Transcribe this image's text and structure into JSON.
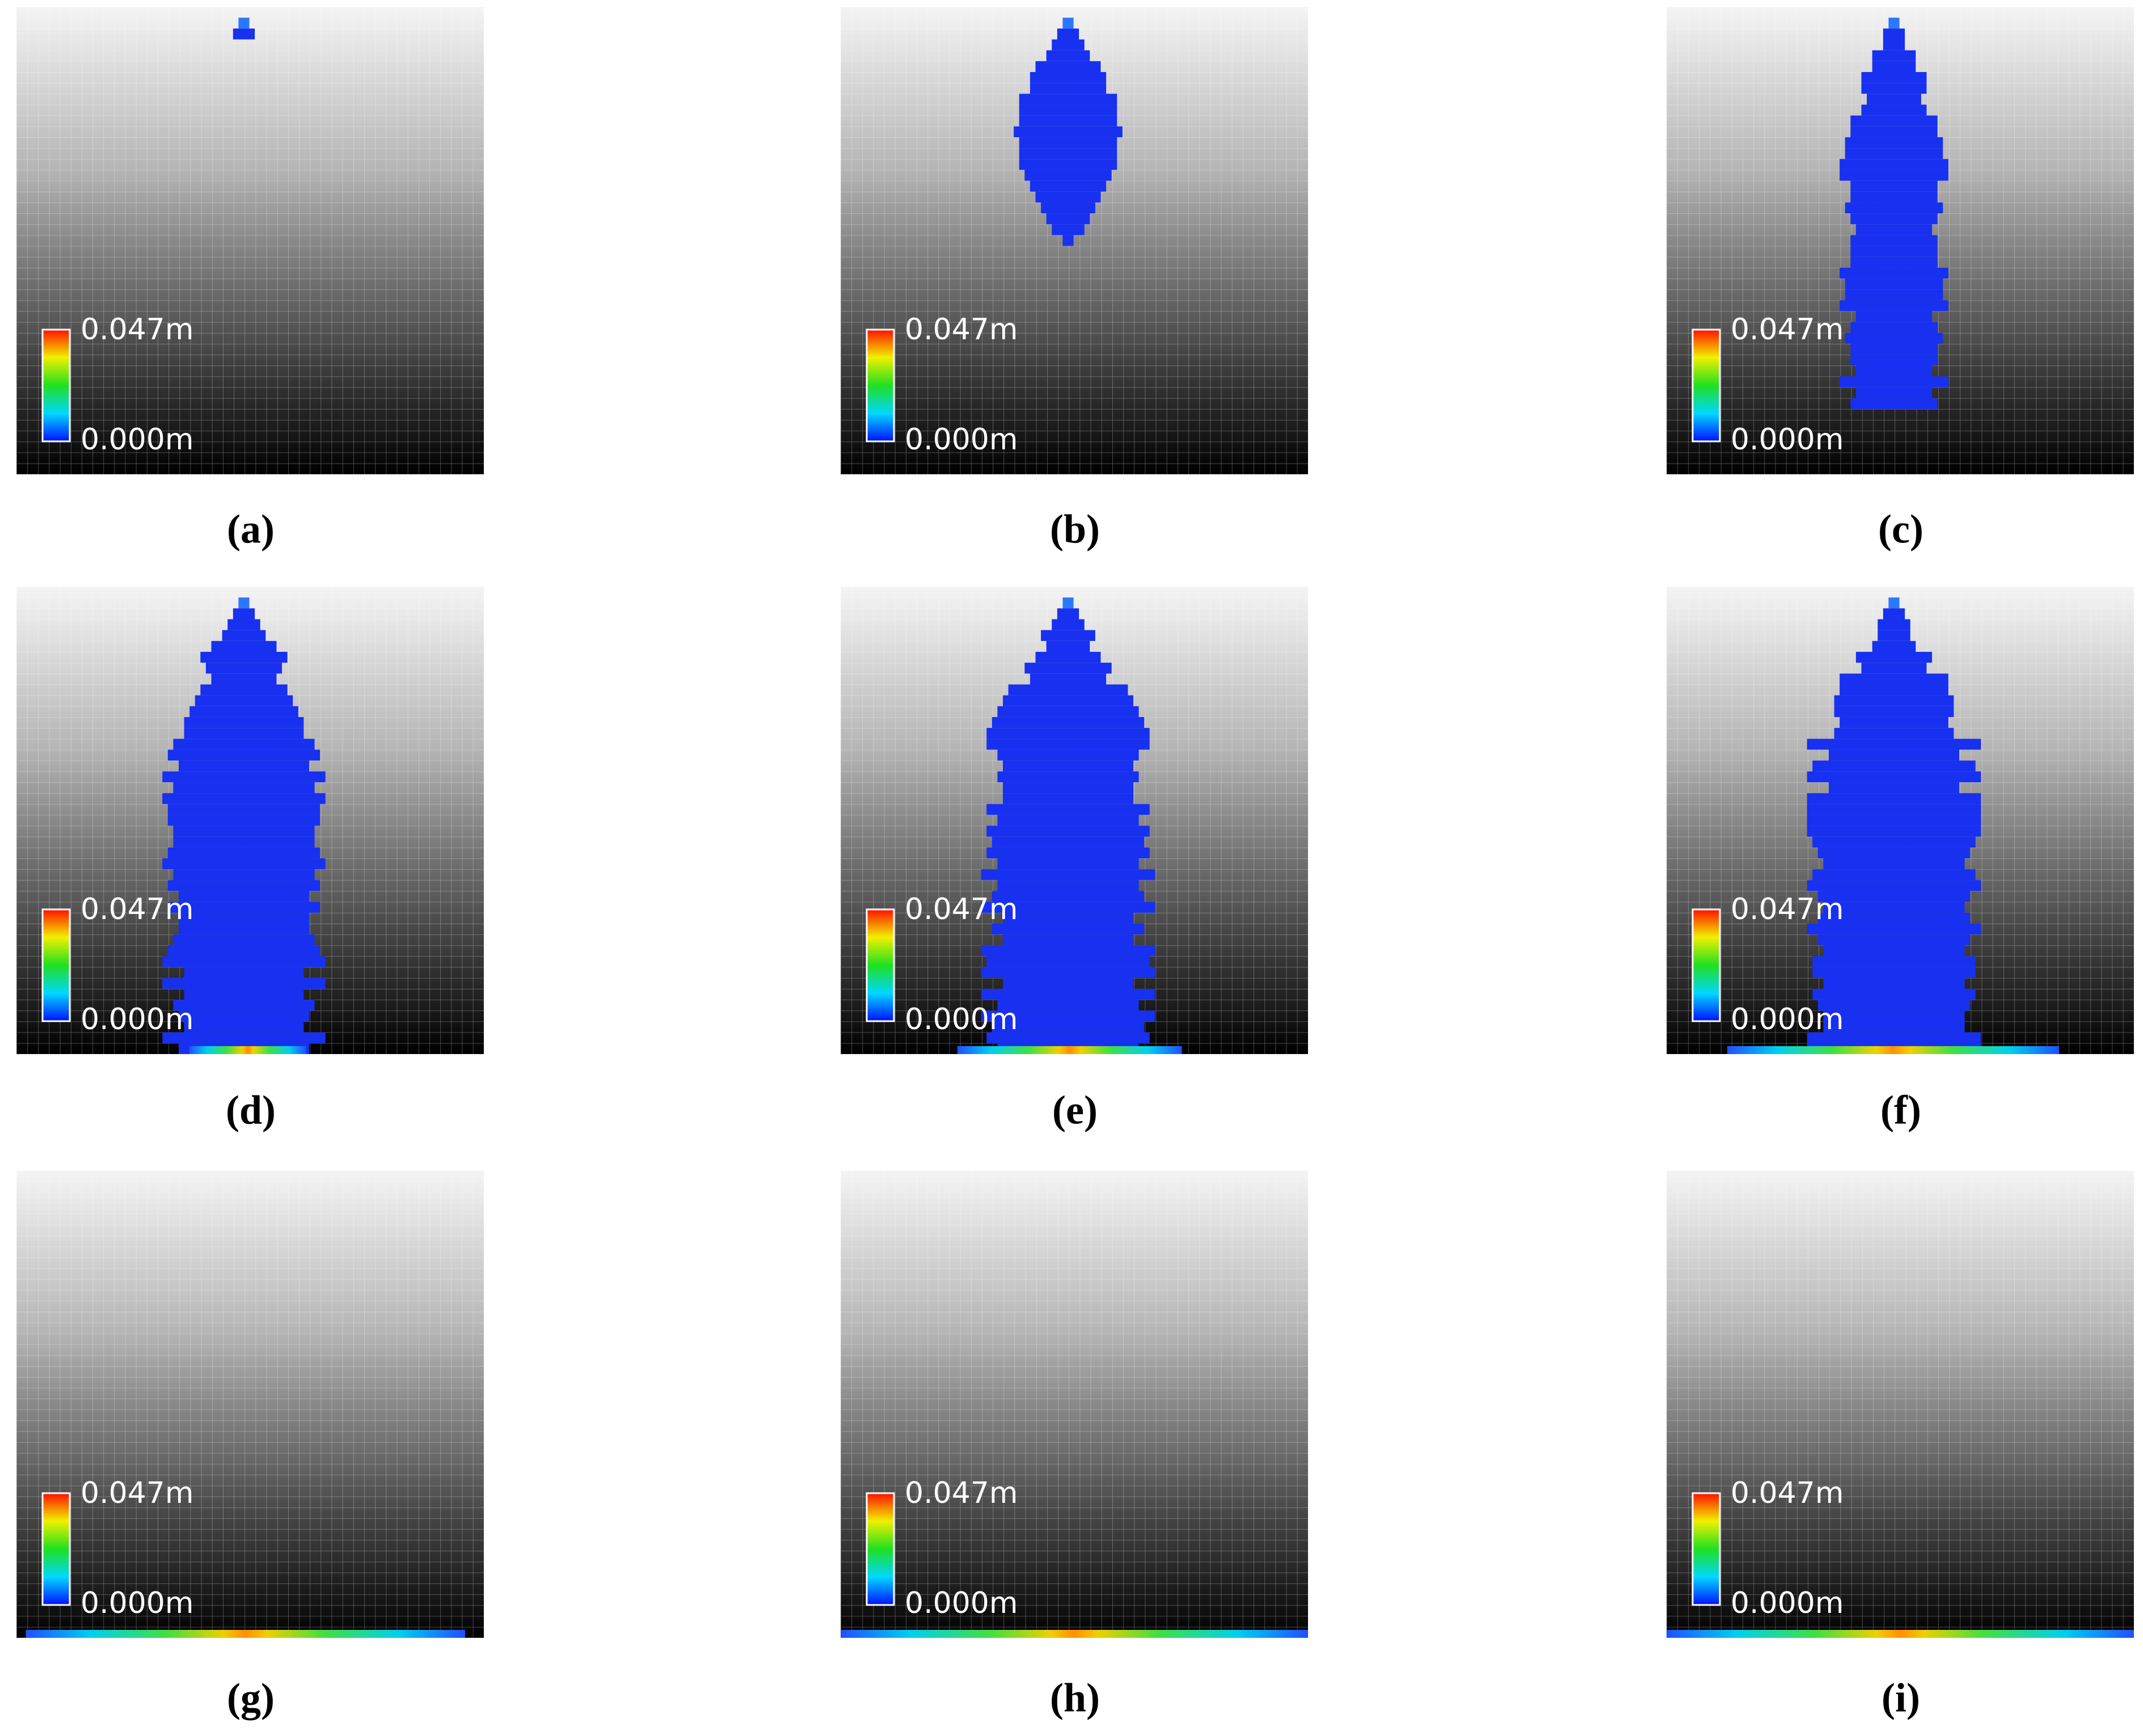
{
  "panels": [
    {
      "label": "(a)",
      "colorbar_max": "0.047m",
      "colorbar_min": "0.000m"
    },
    {
      "label": "(b)",
      "colorbar_max": "0.047m",
      "colorbar_min": "0.000m"
    },
    {
      "label": "(c)",
      "colorbar_max": "0.047m",
      "colorbar_min": "0.000m"
    },
    {
      "label": "(d)",
      "colorbar_max": "0.047m",
      "colorbar_min": "0.000m"
    },
    {
      "label": "(e)",
      "colorbar_max": "0.047m",
      "colorbar_min": "0.000m"
    },
    {
      "label": "(f)",
      "colorbar_max": "0.047m",
      "colorbar_min": "0.000m"
    },
    {
      "label": "(g)",
      "colorbar_max": "0.047m",
      "colorbar_min": "0.000m"
    },
    {
      "label": "(h)",
      "colorbar_max": "0.047m",
      "colorbar_min": "0.000m"
    },
    {
      "label": "(i)",
      "colorbar_max": "0.047m",
      "colorbar_min": "0.000m"
    }
  ]
}
